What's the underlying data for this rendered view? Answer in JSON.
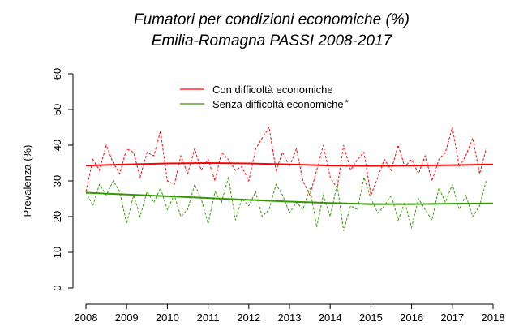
{
  "chart_data": {
    "type": "line",
    "title": "Fumatori per condizioni economiche (%)",
    "subtitle": "Emilia-Romagna PASSI 2008-2017",
    "y_label": "Prevalenza (%)",
    "legend_note": "*",
    "xlim": [
      2008,
      2018
    ],
    "xticks": [
      2008,
      2009,
      2010,
      2011,
      2012,
      2013,
      2014,
      2015,
      2016,
      2017,
      2018
    ],
    "ylim": [
      0,
      60
    ],
    "yticks": [
      0,
      10,
      20,
      30,
      40,
      50,
      60
    ],
    "x": [
      2008,
      2008.17,
      2008.33,
      2008.5,
      2008.67,
      2008.83,
      2009,
      2009.17,
      2009.33,
      2009.5,
      2009.67,
      2009.83,
      2010,
      2010.17,
      2010.33,
      2010.5,
      2010.67,
      2010.83,
      2011,
      2011.17,
      2011.33,
      2011.5,
      2011.67,
      2011.83,
      2012,
      2012.17,
      2012.33,
      2012.5,
      2012.67,
      2012.83,
      2013,
      2013.17,
      2013.33,
      2013.5,
      2013.67,
      2013.83,
      2014,
      2014.17,
      2014.33,
      2014.5,
      2014.67,
      2014.83,
      2015,
      2015.17,
      2015.33,
      2015.5,
      2015.67,
      2015.83,
      2016,
      2016.17,
      2016.33,
      2016.5,
      2016.67,
      2016.83,
      2017,
      2017.17,
      2017.33,
      2017.5,
      2017.67,
      2017.83
    ],
    "series": [
      {
        "name": "Con difficoltà economiche",
        "color": "#ff0000",
        "values": [
          27,
          36,
          33,
          40,
          35,
          32,
          39,
          38,
          31,
          38,
          37,
          44,
          30,
          29,
          37,
          32,
          39,
          33,
          36,
          30,
          38,
          36,
          33,
          34,
          30,
          39,
          42,
          45,
          33,
          38,
          34,
          39,
          30,
          26,
          33,
          40,
          31,
          28,
          40,
          33,
          36,
          38,
          26,
          31,
          36,
          33,
          40,
          34,
          36,
          32,
          37,
          30,
          36,
          38,
          45,
          34,
          37,
          42,
          32,
          39
        ],
        "trend": {
          "x": [
            2008,
            2009,
            2010,
            2011,
            2012,
            2013,
            2014,
            2015,
            2016,
            2017,
            2018
          ],
          "values": [
            34.3,
            34.6,
            34.9,
            35.0,
            34.9,
            34.6,
            34.3,
            34.2,
            34.3,
            34.4,
            34.6
          ]
        }
      },
      {
        "name": "Senza difficoltà economiche",
        "color": "#339900",
        "values": [
          27,
          23,
          29,
          26,
          30,
          27,
          18,
          26,
          20,
          27,
          24,
          28,
          22,
          26,
          20,
          22,
          29,
          25,
          18,
          27,
          24,
          31,
          19,
          25,
          23,
          27,
          20,
          22,
          29,
          26,
          21,
          24,
          22,
          28,
          17,
          26,
          20,
          29,
          16,
          23,
          22,
          31,
          25,
          21,
          23,
          26,
          19,
          24,
          17,
          25,
          22,
          19,
          28,
          24,
          29,
          22,
          26,
          20,
          23,
          30
        ],
        "trend": {
          "x": [
            2008,
            2009,
            2010,
            2011,
            2012,
            2013,
            2014,
            2015,
            2016,
            2017,
            2018
          ],
          "values": [
            26.7,
            26.2,
            25.7,
            25.2,
            24.7,
            24.2,
            23.8,
            23.5,
            23.5,
            23.6,
            23.7
          ]
        }
      }
    ]
  }
}
